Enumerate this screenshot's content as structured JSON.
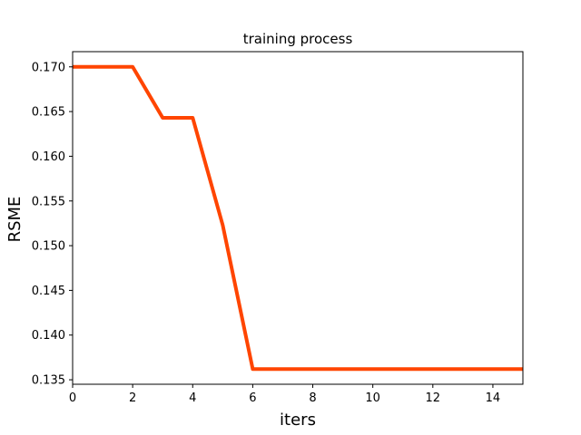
{
  "chart_data": {
    "type": "line",
    "title": "training process",
    "xlabel": "iters",
    "ylabel": "RSME",
    "xlim": [
      0,
      15
    ],
    "ylim": [
      0.1345,
      0.1717
    ],
    "xticks": [
      0,
      2,
      4,
      6,
      8,
      10,
      12,
      14
    ],
    "xtick_labels": [
      "0",
      "2",
      "4",
      "6",
      "8",
      "10",
      "12",
      "14"
    ],
    "yticks": [
      0.135,
      0.14,
      0.145,
      0.15,
      0.155,
      0.16,
      0.165,
      0.17
    ],
    "ytick_labels": [
      "0.135",
      "0.140",
      "0.145",
      "0.150",
      "0.155",
      "0.160",
      "0.165",
      "0.170"
    ],
    "grid": false,
    "series": [
      {
        "name": "RSME",
        "color": "#ff4500",
        "x": [
          0,
          1,
          2,
          3,
          4,
          5,
          6,
          7,
          8,
          9,
          10,
          11,
          12,
          13,
          14,
          15
        ],
        "values": [
          0.17,
          0.17,
          0.17,
          0.1643,
          0.1643,
          0.1523,
          0.1362,
          0.1362,
          0.1362,
          0.1362,
          0.1362,
          0.1362,
          0.1362,
          0.1362,
          0.1362,
          0.1362
        ]
      }
    ]
  }
}
